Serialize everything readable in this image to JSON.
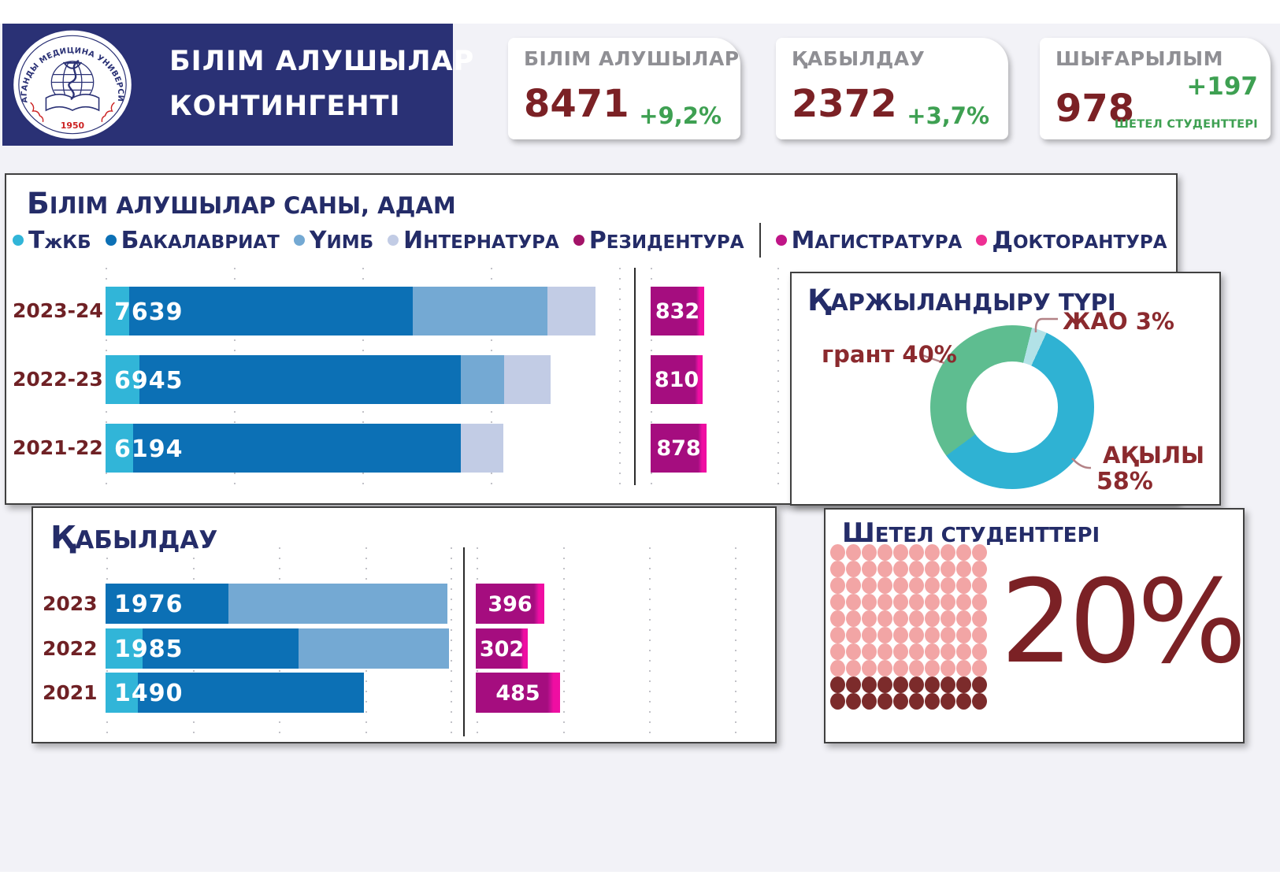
{
  "page": {
    "background": "#f2f2f7",
    "header": {
      "title_line1": "БІЛІМ АЛУШЫЛАР",
      "title_line2": "КОНТИНГЕНТІ",
      "logo": {
        "arc_text": "КАРАГАНДЫ МЕДИЦИНА УНИВЕРСИТЕТІ",
        "year": "1950"
      }
    },
    "stat_cards": [
      {
        "label": "БІЛІМ АЛУШЫЛАР",
        "value": "8471",
        "delta": "+9,2%"
      },
      {
        "label": "ҚАБЫЛДАУ",
        "value": "2372",
        "delta": "+3,7%"
      },
      {
        "label": "ШЫҒАРЫЛЫМ",
        "value": "978",
        "delta": "+197",
        "delta_caption": "ШЕТЕЛ СТУДЕНТТЕРІ"
      }
    ],
    "colors": {
      "navy": "#2a3175",
      "title_navy": "#242c68",
      "maroon": "#752125",
      "maroon_light": "#8b2a2e",
      "green": "#3ea052",
      "gray_label": "#8f8f94",
      "cyan": "#31b5d8",
      "blue": "#0c70b5",
      "light_blue": "#74a9d3",
      "pale_blue": "#c2cce5",
      "magenta": "#a50d7f",
      "magenta_bright": "#ef0ea2",
      "donut_green": "#5ebd90",
      "donut_pale": "#b2e2e7",
      "donut_cyan": "#2fb2d3",
      "waffle_pink": "#f2a5a5",
      "waffle_dark": "#7c2b2b"
    }
  },
  "chart_data": [
    {
      "id": "students_count",
      "type": "bar",
      "stacked": true,
      "orientation": "horizontal",
      "title": "БІЛІМ АЛУШЫЛАР САНЫ, АДАМ",
      "legend": [
        {
          "label": "ТжКБ",
          "color": "#31b5d8"
        },
        {
          "label": "БАКАЛАВРИАТ",
          "color": "#0c70b5"
        },
        {
          "label": "ҮИМБ",
          "color": "#74a9d3"
        },
        {
          "label": "ИНТЕРНАТУРА",
          "color": "#c2cce5"
        },
        {
          "label": "РЕЗИДЕНТУРА",
          "color": "#a31368"
        },
        {
          "label": "МАГИСТРАТУРА",
          "color": "#c01587"
        },
        {
          "label": "ДОКТОРАНТУРА",
          "color": "#ee2f93"
        }
      ],
      "categories": [
        "2023-24",
        "2022-23",
        "2021-22"
      ],
      "totals": [
        7639,
        6945,
        6194
      ],
      "series": [
        {
          "name": "ТжКБ",
          "values": [
            370,
            530,
            430
          ]
        },
        {
          "name": "БАКАЛАВРИАТ",
          "values": [
            4420,
            5010,
            5105
          ]
        },
        {
          "name": "ҮИМБ",
          "values": [
            2100,
            680,
            0
          ]
        },
        {
          "name": "ИНТЕРНАТУРА",
          "values": [
            749,
            725,
            659
          ]
        }
      ],
      "postgraduate": {
        "name": "РЕЗИДЕНТУРА+МАГИСТРАТУРА+ДОКТОРАНТУРА",
        "values": [
          832,
          810,
          878
        ]
      },
      "axis": {
        "gridlines": true,
        "gridline_step": 2000
      }
    },
    {
      "id": "admission",
      "type": "bar",
      "stacked": true,
      "orientation": "horizontal",
      "title": "ҚАБЫЛДАУ",
      "categories": [
        "2023",
        "2022",
        "2021"
      ],
      "totals": [
        1976,
        1985,
        1490
      ],
      "series": [
        {
          "name": "ТжКБ",
          "values": [
            0,
            215,
            185
          ]
        },
        {
          "name": "БАКАЛАВРИАТ",
          "values": [
            710,
            900,
            1305
          ]
        },
        {
          "name": "ҮИМБ",
          "values": [
            1266,
            870,
            0
          ]
        }
      ],
      "postgraduate": {
        "name": "РЕЗИДЕНТУРА+МАГИСТРАТУРА+ДОКТОРАНТУРА",
        "values": [
          396,
          302,
          485
        ]
      },
      "axis": {
        "gridlines": true,
        "gridline_step": 500
      }
    },
    {
      "id": "financing",
      "type": "pie",
      "title": "ҚАРЖЫЛАНДЫРУ ТҮРІ",
      "slices": [
        {
          "label": "грант",
          "pct": 40,
          "color": "#5ebd90"
        },
        {
          "label": "ЖАО",
          "pct": 3,
          "color": "#b2e2e7"
        },
        {
          "label": "АҚЫЛЫ",
          "pct": 58,
          "color": "#2fb2d3"
        }
      ],
      "label_grant": "грант 40%",
      "label_zhao": "ЖАО 3%",
      "label_aqyly_1": "АҚЫЛЫ",
      "label_aqyly_2": "58%"
    },
    {
      "id": "foreign_students",
      "type": "waffle",
      "title": "ШЕТЕЛ СТУДЕНТТЕРІ",
      "percent": 20,
      "percent_label": "20%",
      "grid": {
        "rows": 10,
        "cols": 10,
        "highlighted_cells": 20
      }
    }
  ]
}
